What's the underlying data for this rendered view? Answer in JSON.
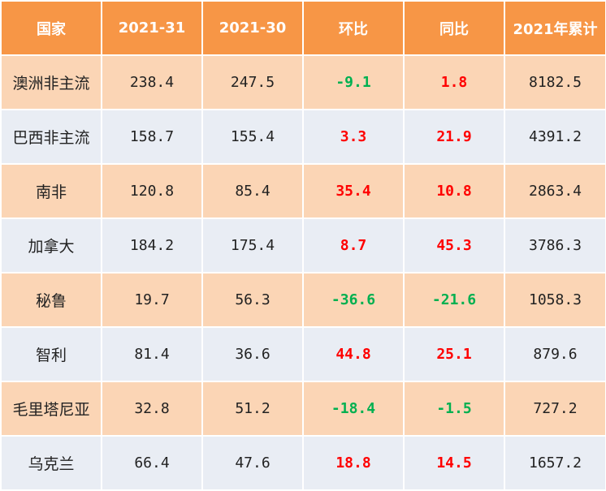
{
  "table": {
    "headers": [
      "国家",
      "2021-31",
      "2021-30",
      "环比",
      "同比",
      "2021年累计"
    ],
    "rows": [
      {
        "country": "澳洲非主流",
        "w31": "238.4",
        "w30": "247.5",
        "wow": "-9.1",
        "yoy": "1.8",
        "ytd": "8182.5"
      },
      {
        "country": "巴西非主流",
        "w31": "158.7",
        "w30": "155.4",
        "wow": "3.3",
        "yoy": "21.9",
        "ytd": "4391.2"
      },
      {
        "country": "南非",
        "w31": "120.8",
        "w30": "85.4",
        "wow": "35.4",
        "yoy": "10.8",
        "ytd": "2863.4"
      },
      {
        "country": "加拿大",
        "w31": "184.2",
        "w30": "175.4",
        "wow": "8.7",
        "yoy": "45.3",
        "ytd": "3786.3"
      },
      {
        "country": "秘鲁",
        "w31": "19.7",
        "w30": "56.3",
        "wow": "-36.6",
        "yoy": "-21.6",
        "ytd": "1058.3"
      },
      {
        "country": "智利",
        "w31": "81.4",
        "w30": "36.6",
        "wow": "44.8",
        "yoy": "25.1",
        "ytd": "879.6"
      },
      {
        "country": "毛里塔尼亚",
        "w31": "32.8",
        "w30": "51.2",
        "wow": "-18.4",
        "yoy": "-1.5",
        "ytd": "727.2"
      },
      {
        "country": "乌克兰",
        "w31": "66.4",
        "w30": "47.6",
        "wow": "18.8",
        "yoy": "14.5",
        "ytd": "1657.2"
      }
    ]
  },
  "colors": {
    "header_bg": "#f79646",
    "header_text": "#ffffff",
    "row_odd_bg": "#fbd5b5",
    "row_even_bg": "#e9edf4",
    "positive_change": "#ff0000",
    "negative_change": "#00b050"
  }
}
